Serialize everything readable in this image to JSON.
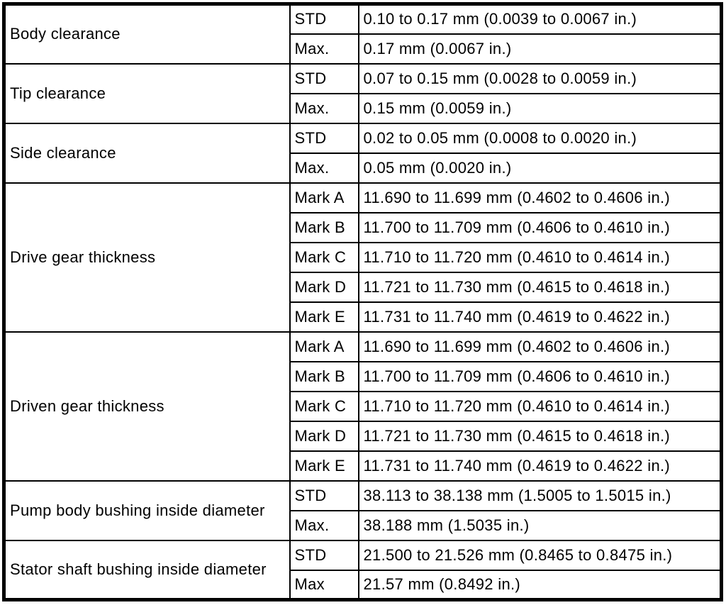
{
  "table": {
    "groups": [
      {
        "parameter": "Body clearance",
        "rows": [
          {
            "condition": "STD",
            "value": "0.10 to 0.17 mm (0.0039 to 0.0067 in.)"
          },
          {
            "condition": "Max.",
            "value": "0.17 mm (0.0067 in.)"
          }
        ]
      },
      {
        "parameter": "Tip clearance",
        "rows": [
          {
            "condition": "STD",
            "value": "0.07 to 0.15 mm (0.0028 to 0.0059 in.)"
          },
          {
            "condition": "Max.",
            "value": "0.15 mm (0.0059 in.)"
          }
        ]
      },
      {
        "parameter": "Side clearance",
        "rows": [
          {
            "condition": "STD",
            "value": "0.02 to 0.05 mm (0.0008 to 0.0020 in.)"
          },
          {
            "condition": "Max.",
            "value": "0.05 mm (0.0020 in.)"
          }
        ]
      },
      {
        "parameter": "Drive gear thickness",
        "rows": [
          {
            "condition": "Mark A",
            "value": "11.690 to 11.699 mm (0.4602 to 0.4606 in.)"
          },
          {
            "condition": "Mark B",
            "value": "11.700 to 11.709 mm (0.4606 to 0.4610 in.)"
          },
          {
            "condition": "Mark C",
            "value": "11.710 to 11.720 mm (0.4610 to 0.4614 in.)"
          },
          {
            "condition": "Mark D",
            "value": "11.721 to 11.730 mm (0.4615 to 0.4618 in.)"
          },
          {
            "condition": "Mark E",
            "value": "11.731 to 11.740 mm (0.4619 to 0.4622 in.)"
          }
        ]
      },
      {
        "parameter": "Driven gear thickness",
        "rows": [
          {
            "condition": "Mark A",
            "value": "11.690 to 11.699 mm (0.4602 to 0.4606 in.)"
          },
          {
            "condition": "Mark B",
            "value": "11.700 to 11.709 mm (0.4606 to 0.4610 in.)"
          },
          {
            "condition": "Mark C",
            "value": "11.710 to 11.720 mm (0.4610 to 0.4614 in.)"
          },
          {
            "condition": "Mark D",
            "value": "11.721 to 11.730 mm (0.4615 to 0.4618 in.)"
          },
          {
            "condition": "Mark E",
            "value": "11.731 to 11.740 mm (0.4619 to 0.4622 in.)"
          }
        ]
      },
      {
        "parameter": "Pump body bushing inside diameter",
        "rows": [
          {
            "condition": "STD",
            "value": "38.113 to 38.138 mm (1.5005 to 1.5015 in.)"
          },
          {
            "condition": "Max.",
            "value": "38.188 mm (1.5035 in.)"
          }
        ]
      },
      {
        "parameter": "Stator shaft bushing inside diameter",
        "rows": [
          {
            "condition": "STD",
            "value": "21.500 to 21.526 mm (0.8465 to 0.8475 in.)"
          },
          {
            "condition": "Max",
            "value": "21.57 mm (0.8492 in.)"
          }
        ]
      }
    ]
  },
  "colors": {
    "border": "#000000",
    "text": "#000000",
    "background": "#ffffff"
  }
}
